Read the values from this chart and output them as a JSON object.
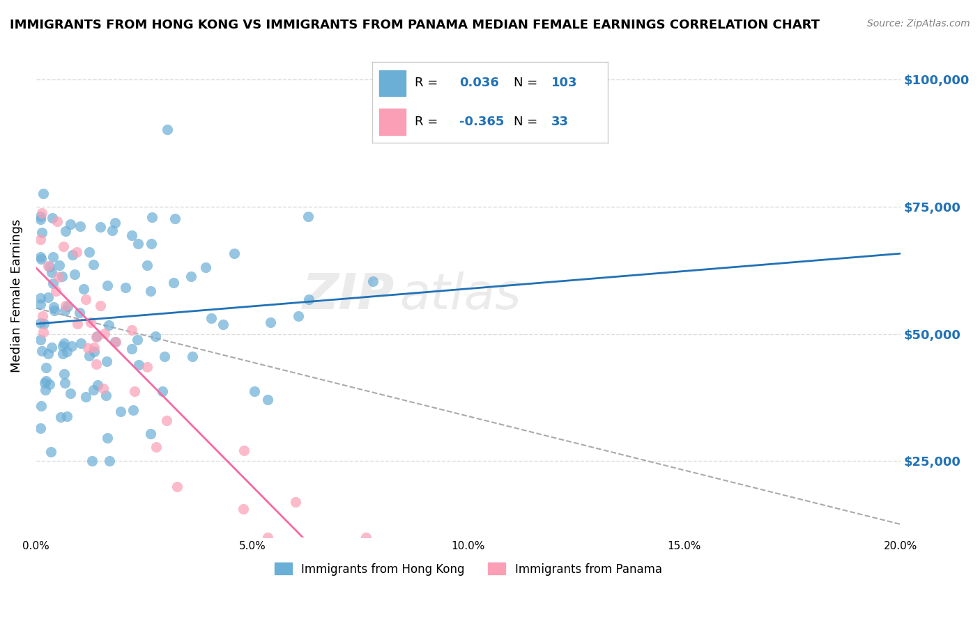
{
  "title": "IMMIGRANTS FROM HONG KONG VS IMMIGRANTS FROM PANAMA MEDIAN FEMALE EARNINGS CORRELATION CHART",
  "source": "Source: ZipAtlas.com",
  "ylabel": "Median Female Earnings",
  "xlim": [
    0.0,
    0.2
  ],
  "ylim": [
    10000,
    105000
  ],
  "yticks": [
    25000,
    50000,
    75000,
    100000
  ],
  "ytick_labels": [
    "$25,000",
    "$50,000",
    "$75,000",
    "$100,000"
  ],
  "hk_R": 0.036,
  "hk_N": 103,
  "pan_R": -0.365,
  "pan_N": 33,
  "hk_color": "#6baed6",
  "pan_color": "#fa9fb5",
  "hk_line_color": "#2171b5",
  "pan_line_color": "#f768a1",
  "trend_line_color": "#aaaaaa",
  "background_color": "#ffffff",
  "grid_color": "#dddddd",
  "legend_label_hk": "Immigrants from Hong Kong",
  "legend_label_pan": "Immigrants from Panama",
  "xtick_positions": [
    0.0,
    0.05,
    0.1,
    0.15,
    0.2
  ],
  "xtick_labels": [
    "0.0%",
    "5.0%",
    "10.0%",
    "15.0%",
    "20.0%"
  ]
}
